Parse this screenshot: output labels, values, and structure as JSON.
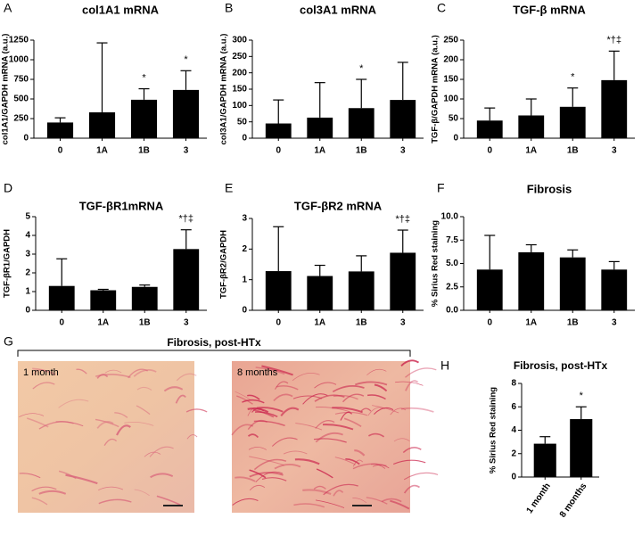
{
  "chart_data": [
    {
      "type": "bar",
      "panel": "A",
      "title": "col1A1 mRNA",
      "ylabel": "col1A1/GAPDH mRNA (a.u.)",
      "categories": [
        "0",
        "1A",
        "1B",
        "3"
      ],
      "values": [
        200,
        330,
        490,
        615
      ],
      "errors": [
        60,
        885,
        140,
        245
      ],
      "annotations": [
        null,
        null,
        "*",
        "*"
      ],
      "color": "#000000",
      "ylim": [
        0,
        1250
      ],
      "yticks": [
        0,
        250,
        500,
        750,
        1000,
        1250
      ]
    },
    {
      "type": "bar",
      "panel": "B",
      "title": "col3A1 mRNA",
      "ylabel": "col3A1/GAPDH mRNA (a.u.)",
      "categories": [
        "0",
        "1A",
        "1B",
        "3"
      ],
      "values": [
        45,
        63,
        92,
        117
      ],
      "errors": [
        72,
        107,
        88,
        115
      ],
      "annotations": [
        null,
        null,
        "*",
        null
      ],
      "color": "#000000",
      "ylim": [
        0,
        300
      ],
      "yticks": [
        0,
        50,
        100,
        150,
        200,
        250,
        300
      ]
    },
    {
      "type": "bar",
      "panel": "C",
      "title": "TGF-β mRNA",
      "ylabel": "TGF-β/GAPDH mRNA (a.u.)",
      "categories": [
        "0",
        "1A",
        "1B",
        "3"
      ],
      "values": [
        45,
        58,
        80,
        148
      ],
      "errors": [
        32,
        42,
        48,
        74
      ],
      "annotations": [
        null,
        null,
        "*",
        "*†‡"
      ],
      "color": "#000000",
      "ylim": [
        0,
        250
      ],
      "yticks": [
        0,
        50,
        100,
        150,
        200,
        250
      ]
    },
    {
      "type": "bar",
      "panel": "D",
      "title": "TGF-βR1mRNA",
      "ylabel": "TGF-βR1/GAPDH",
      "categories": [
        "0",
        "1A",
        "1B",
        "3"
      ],
      "values": [
        1.3,
        1.07,
        1.25,
        3.27
      ],
      "errors": [
        1.45,
        0.05,
        0.1,
        1.03
      ],
      "annotations": [
        null,
        null,
        null,
        "*†‡"
      ],
      "color": "#000000",
      "ylim": [
        0,
        5
      ],
      "yticks": [
        0,
        1,
        2,
        3,
        4,
        5
      ]
    },
    {
      "type": "bar",
      "panel": "E",
      "title": "TGF-βR2 mRNA",
      "ylabel": "TGF-βR2/GAPDH",
      "categories": [
        "0",
        "1A",
        "1B",
        "3"
      ],
      "values": [
        1.28,
        1.12,
        1.27,
        1.88
      ],
      "errors": [
        1.45,
        0.35,
        0.51,
        0.74
      ],
      "annotations": [
        null,
        null,
        null,
        "*†‡"
      ],
      "color": "#000000",
      "ylim": [
        0,
        3
      ],
      "yticks": [
        0,
        1,
        2,
        3
      ]
    },
    {
      "type": "bar",
      "panel": "F",
      "title": "Fibrosis",
      "ylabel": "% Sirius Red staining",
      "categories": [
        "0",
        "1A",
        "1B",
        "3"
      ],
      "values": [
        4.35,
        6.2,
        5.65,
        4.35
      ],
      "errors": [
        3.65,
        0.8,
        0.8,
        0.85
      ],
      "annotations": [
        null,
        null,
        null,
        null
      ],
      "color": "#000000",
      "ylim": [
        0,
        10
      ],
      "yticks": [
        {
          "value": 0,
          "label": "0.0"
        },
        {
          "value": 2.5,
          "label": "2.5"
        },
        {
          "value": 5,
          "label": "5.0"
        },
        {
          "value": 7.5,
          "label": "7.5"
        },
        {
          "value": 10,
          "label": "10.0"
        }
      ]
    },
    {
      "type": "bar",
      "panel": "H",
      "title": "Fibrosis, post-HTx",
      "ylabel": "% Sirius Red staining",
      "categories": [
        "1 month",
        "8 months"
      ],
      "values": [
        2.85,
        4.95
      ],
      "errors": [
        0.6,
        1.05
      ],
      "annotations": [
        null,
        "*"
      ],
      "color": "#000000",
      "ylim": [
        0,
        8
      ],
      "yticks": [
        0,
        2,
        4,
        6,
        8
      ]
    }
  ],
  "image_panel": {
    "panel": "G",
    "title": "Fibrosis, post-HTx",
    "images": [
      {
        "label": "1 month"
      },
      {
        "label": "8 months"
      }
    ]
  }
}
